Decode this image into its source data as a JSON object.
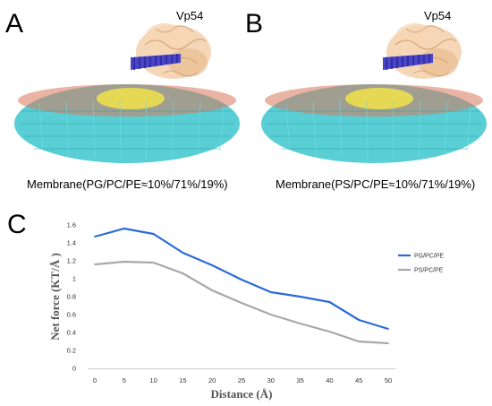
{
  "panels": {
    "a": {
      "letter": "A",
      "protein": "Vp54",
      "caption": "Membrane(PG/PC/PE≈10%/71%/19%)"
    },
    "b": {
      "letter": "B",
      "protein": "Vp54",
      "caption": "Membrane(PS/PC/PE≈10%/71%/19%)"
    },
    "c": {
      "letter": "C"
    }
  },
  "colors": {
    "protein": "#f2c9a0",
    "helix": "#4a45c8",
    "lipid_tails": "#3cc6cc",
    "headgroups_yellow": "#f0e24a",
    "pg_series": "#2a6ad8",
    "ps_series": "#a8a8a8"
  },
  "chart_data": {
    "type": "line",
    "x": [
      0,
      5,
      10,
      15,
      20,
      25,
      30,
      35,
      40,
      45,
      50
    ],
    "series": [
      {
        "name": "PG/PC/PE",
        "values": [
          1.47,
          1.56,
          1.5,
          1.29,
          1.15,
          0.99,
          0.85,
          0.8,
          0.74,
          0.54,
          0.44
        ]
      },
      {
        "name": "PS/PC/PE",
        "values": [
          1.16,
          1.19,
          1.18,
          1.06,
          0.87,
          0.73,
          0.6,
          0.5,
          0.41,
          0.3,
          0.28
        ]
      }
    ],
    "xlabel": "Distance (Å)",
    "ylabel": "Net force (KT/Å )",
    "xlim": [
      0,
      50
    ],
    "ylim": [
      0,
      1.6
    ],
    "xticks": [
      "0",
      "5",
      "10",
      "15",
      "20",
      "25",
      "30",
      "35",
      "40",
      "45",
      "50"
    ],
    "yticks": [
      "0",
      "0.2",
      "0.4",
      "0.6",
      "0.8",
      "1",
      "1.2",
      "1.4",
      "1.6"
    ],
    "grid": false,
    "legend": "right"
  }
}
